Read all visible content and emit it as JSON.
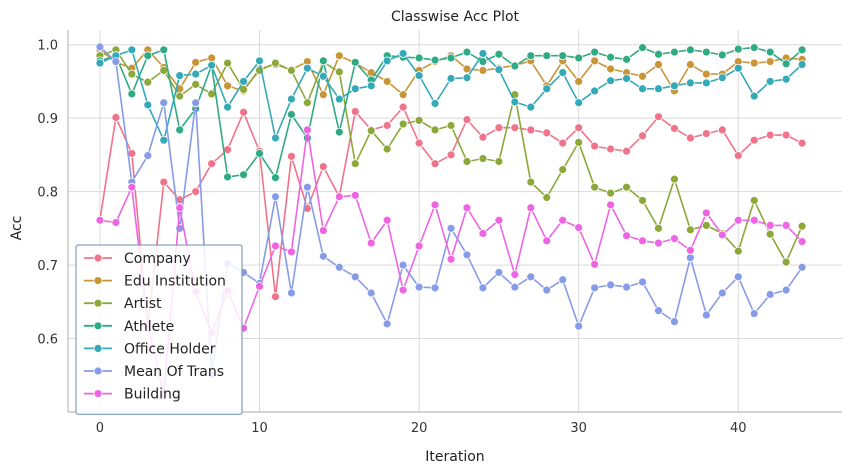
{
  "chart_data": {
    "type": "line",
    "title": "Classwise Acc Plot",
    "xlabel": "Iteration",
    "ylabel": "Acc",
    "xlim": [
      -2,
      46.5
    ],
    "ylim": [
      0.5,
      1.02
    ],
    "xticks": [
      0,
      10,
      20,
      30,
      40
    ],
    "yticks": [
      0.6,
      0.7,
      0.8,
      0.9,
      1.0
    ],
    "xtick_labels": [
      "0",
      "10",
      "20",
      "30",
      "40"
    ],
    "ytick_labels": [
      "0.6",
      "0.7",
      "0.8",
      "0.9",
      "1.0"
    ],
    "grid": true,
    "legend_position": "lower-left",
    "x": [
      0,
      1,
      2,
      3,
      4,
      5,
      6,
      7,
      8,
      9,
      10,
      11,
      12,
      13,
      14,
      15,
      16,
      17,
      18,
      19,
      20,
      21,
      22,
      23,
      24,
      25,
      26,
      27,
      28,
      29,
      30,
      31,
      32,
      33,
      34,
      35,
      36,
      37,
      38,
      39,
      40,
      41,
      42,
      43,
      44
    ],
    "series": [
      {
        "name": "Company",
        "color": "#f0738a",
        "values": [
          0.761,
          0.901,
          0.852,
          0.615,
          0.813,
          0.789,
          0.8,
          0.838,
          0.857,
          0.908,
          0.855,
          0.657,
          0.848,
          0.777,
          0.834,
          0.793,
          0.909,
          0.884,
          0.89,
          0.915,
          0.866,
          0.838,
          0.85,
          0.898,
          0.874,
          0.887,
          0.887,
          0.884,
          0.88,
          0.866,
          0.887,
          0.862,
          0.858,
          0.855,
          0.876,
          0.902,
          0.886,
          0.873,
          0.879,
          0.884,
          0.849,
          0.87,
          0.877,
          0.877,
          0.866
        ]
      },
      {
        "name": "Edu Institution",
        "color": "#c99537",
        "values": [
          0.993,
          0.976,
          0.968,
          0.993,
          0.969,
          0.94,
          0.976,
          0.982,
          0.944,
          0.937,
          0.967,
          0.973,
          0.966,
          0.977,
          0.932,
          0.985,
          0.975,
          0.962,
          0.95,
          0.932,
          0.965,
          0.977,
          0.985,
          0.967,
          0.965,
          0.968,
          0.972,
          0.978,
          0.944,
          0.978,
          0.95,
          0.978,
          0.967,
          0.962,
          0.957,
          0.973,
          0.937,
          0.973,
          0.96,
          0.96,
          0.977,
          0.975,
          0.977,
          0.982,
          0.98
        ]
      },
      {
        "name": "Artist",
        "color": "#8ca838",
        "values": [
          0.985,
          0.993,
          0.96,
          0.949,
          0.965,
          0.93,
          0.946,
          0.933,
          0.975,
          0.939,
          0.965,
          0.975,
          0.965,
          0.921,
          0.976,
          0.963,
          0.838,
          0.883,
          0.858,
          0.892,
          0.897,
          0.884,
          0.89,
          0.841,
          0.845,
          0.841,
          0.932,
          0.813,
          0.792,
          0.83,
          0.867,
          0.806,
          0.798,
          0.806,
          0.788,
          0.75,
          0.817,
          0.748,
          0.754,
          0.743,
          0.719,
          0.788,
          0.742,
          0.704,
          0.753
        ]
      },
      {
        "name": "Athlete",
        "color": "#2eab84",
        "values": [
          0.978,
          0.985,
          0.933,
          0.985,
          0.993,
          0.884,
          0.913,
          0.972,
          0.82,
          0.823,
          0.852,
          0.819,
          0.905,
          0.873,
          0.978,
          0.881,
          0.976,
          0.952,
          0.985,
          0.983,
          0.982,
          0.979,
          0.982,
          0.99,
          0.977,
          0.987,
          0.971,
          0.985,
          0.985,
          0.985,
          0.982,
          0.99,
          0.983,
          0.98,
          0.996,
          0.987,
          0.99,
          0.993,
          0.99,
          0.986,
          0.994,
          0.996,
          0.99,
          0.974,
          0.993
        ]
      },
      {
        "name": "Office Holder",
        "color": "#34a9b8",
        "values": [
          0.975,
          0.985,
          0.993,
          0.918,
          0.87,
          0.958,
          0.96,
          0.972,
          0.915,
          0.95,
          0.978,
          0.873,
          0.926,
          0.968,
          0.957,
          0.926,
          0.94,
          0.944,
          0.978,
          0.988,
          0.958,
          0.92,
          0.954,
          0.955,
          0.988,
          0.966,
          0.922,
          0.915,
          0.94,
          0.962,
          0.921,
          0.937,
          0.951,
          0.954,
          0.94,
          0.94,
          0.944,
          0.948,
          0.948,
          0.955,
          0.968,
          0.93,
          0.95,
          0.953,
          0.973
        ]
      },
      {
        "name": "Mean Of Trans",
        "color": "#869ce8",
        "values": [
          0.997,
          0.977,
          0.813,
          0.849,
          0.921,
          0.75,
          0.921,
          0.551,
          0.702,
          0.69,
          0.675,
          0.793,
          0.662,
          0.806,
          0.712,
          0.697,
          0.684,
          0.662,
          0.62,
          0.7,
          0.67,
          0.669,
          0.75,
          0.714,
          0.669,
          0.69,
          0.67,
          0.684,
          0.666,
          0.68,
          0.617,
          0.669,
          0.673,
          0.67,
          0.677,
          0.638,
          0.623,
          0.71,
          0.632,
          0.662,
          0.684,
          0.634,
          0.66,
          0.666,
          0.697
        ]
      },
      {
        "name": "Building",
        "color": "#ee65e4",
        "values": [
          0.761,
          0.758,
          0.806,
          0.619,
          0.524,
          0.778,
          0.664,
          0.608,
          0.665,
          0.614,
          0.671,
          0.726,
          0.718,
          0.884,
          0.747,
          0.793,
          0.795,
          0.73,
          0.761,
          0.666,
          0.726,
          0.782,
          0.708,
          0.778,
          0.743,
          0.761,
          0.687,
          0.778,
          0.733,
          0.761,
          0.751,
          0.701,
          0.782,
          0.74,
          0.733,
          0.73,
          0.736,
          0.72,
          0.771,
          0.741,
          0.761,
          0.761,
          0.754,
          0.754,
          0.732
        ]
      }
    ]
  }
}
